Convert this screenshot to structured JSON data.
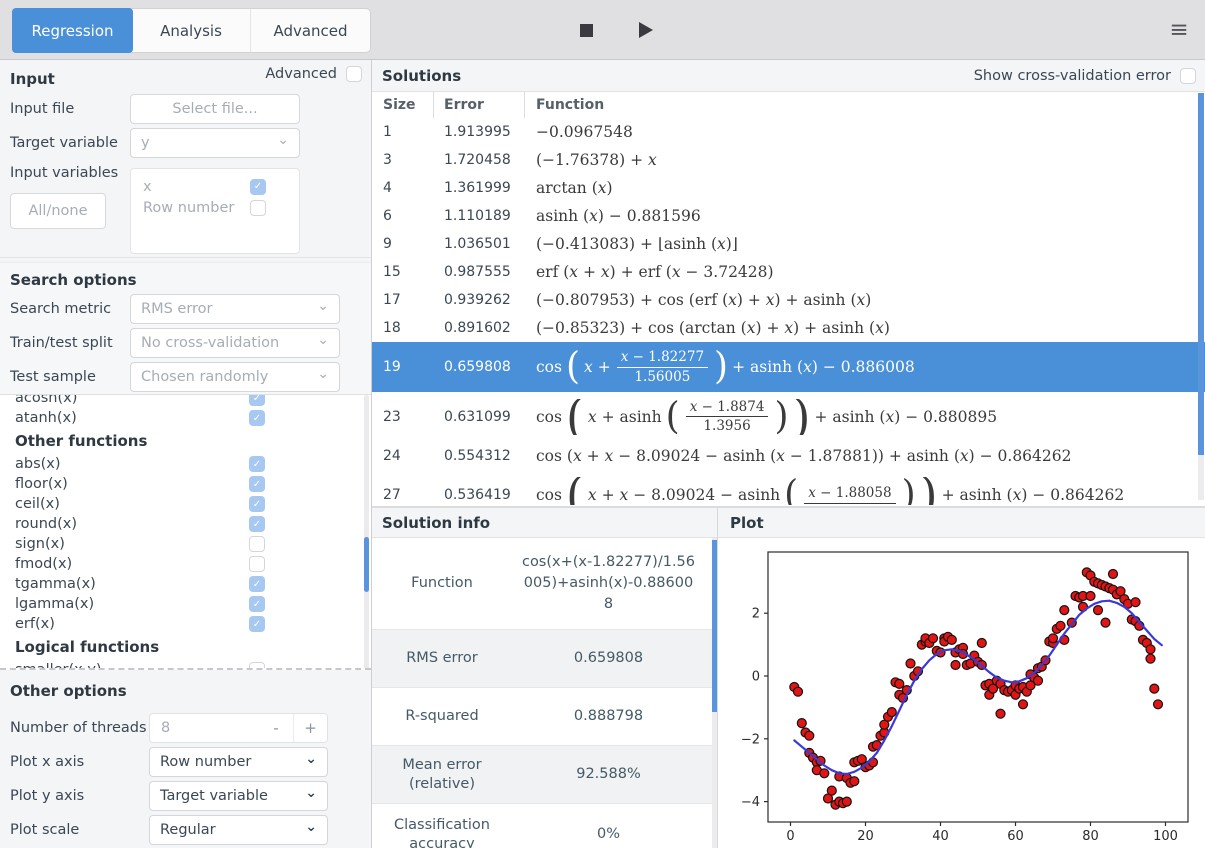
{
  "toolbar": {
    "tabs": [
      "Regression",
      "Analysis",
      "Advanced"
    ],
    "active_tab": "Regression"
  },
  "icons": {
    "menu": "≡",
    "chevron": "⌄",
    "check": "✓",
    "minus": "-",
    "plus": "+"
  },
  "sidebar": {
    "input": {
      "title": "Input",
      "advanced_label": "Advanced",
      "advanced_checked": false,
      "input_file_label": "Input file",
      "input_file_button": "Select file...",
      "target_variable_label": "Target variable",
      "target_variable_value": "y",
      "input_variables_label": "Input variables",
      "input_variables": [
        {
          "name": "x",
          "checked": true
        },
        {
          "name": "Row number",
          "checked": false
        }
      ],
      "all_none_button": "All/none"
    },
    "search_options": {
      "title": "Search options",
      "fields": [
        {
          "label": "Search metric",
          "value": "RMS error"
        },
        {
          "label": "Train/test split",
          "value": "No cross-validation"
        },
        {
          "label": "Test sample",
          "value": "Chosen randomly"
        }
      ]
    },
    "function_list": [
      {
        "type": "item",
        "label": "acosh(x)",
        "checked": true
      },
      {
        "type": "item",
        "label": "atanh(x)",
        "checked": true
      },
      {
        "type": "header",
        "label": "Other functions"
      },
      {
        "type": "item",
        "label": "abs(x)",
        "checked": true
      },
      {
        "type": "item",
        "label": "floor(x)",
        "checked": true
      },
      {
        "type": "item",
        "label": "ceil(x)",
        "checked": true
      },
      {
        "type": "item",
        "label": "round(x)",
        "checked": true
      },
      {
        "type": "item",
        "label": "sign(x)",
        "checked": false
      },
      {
        "type": "item",
        "label": "fmod(x)",
        "checked": false
      },
      {
        "type": "item",
        "label": "tgamma(x)",
        "checked": true
      },
      {
        "type": "item",
        "label": "lgamma(x)",
        "checked": true
      },
      {
        "type": "item",
        "label": "erf(x)",
        "checked": true
      },
      {
        "type": "header",
        "label": "Logical functions"
      },
      {
        "type": "item",
        "label": "smaller(x,y)",
        "checked": false
      }
    ],
    "other_options": {
      "title": "Other options",
      "threads_label": "Number of threads",
      "threads_value": "8",
      "fields": [
        {
          "label": "Plot x axis",
          "value": "Row number"
        },
        {
          "label": "Plot y axis",
          "value": "Target variable"
        },
        {
          "label": "Plot scale",
          "value": "Regular"
        }
      ]
    }
  },
  "solutions": {
    "title": "Solutions",
    "cv_label": "Show cross-validation error",
    "cv_checked": false,
    "columns": [
      "Size",
      "Error",
      "Function"
    ],
    "rows": [
      {
        "size": "1",
        "error": "1.913995",
        "fn": [
          {
            "t": "m",
            "s": "−0.0967548"
          }
        ]
      },
      {
        "size": "3",
        "error": "1.720458",
        "fn": [
          {
            "t": "m",
            "s": "(−1.76378) + x"
          }
        ]
      },
      {
        "size": "4",
        "error": "1.361999",
        "fn": [
          {
            "t": "m",
            "s": "arctan (x)"
          }
        ]
      },
      {
        "size": "6",
        "error": "1.110189",
        "fn": [
          {
            "t": "m",
            "s": "asinh (x) − 0.881596"
          }
        ]
      },
      {
        "size": "9",
        "error": "1.036501",
        "fn": [
          {
            "t": "m",
            "s": "(−0.413083) + ⌊asinh (x)⌋"
          }
        ]
      },
      {
        "size": "15",
        "error": "0.987555",
        "fn": [
          {
            "t": "m",
            "s": "erf (x + x) + erf (x − 3.72428)"
          }
        ]
      },
      {
        "size": "17",
        "error": "0.939262",
        "fn": [
          {
            "t": "m",
            "s": "(−0.807953) + cos (erf (x) + x) + asinh (x)"
          }
        ]
      },
      {
        "size": "18",
        "error": "0.891602",
        "fn": [
          {
            "t": "m",
            "s": "(−0.85323) + cos (arctan (x) + x) + asinh (x)"
          }
        ]
      },
      {
        "size": "19",
        "error": "0.659808",
        "selected": true,
        "fn": [
          {
            "t": "m",
            "s": "cos"
          },
          {
            "t": "bp",
            "s": "(",
            "size": 1
          },
          {
            "t": "m",
            "s": "x +"
          },
          {
            "t": "frac",
            "num": "x − 1.82277",
            "den": "1.56005"
          },
          {
            "t": "bp",
            "s": ")",
            "size": 1
          },
          {
            "t": "m",
            "s": "+ asinh (x) − 0.886008"
          }
        ]
      },
      {
        "size": "23",
        "error": "0.631099",
        "fn": [
          {
            "t": "m",
            "s": "cos"
          },
          {
            "t": "bp",
            "s": "(",
            "size": 2
          },
          {
            "t": "m",
            "s": "x + asinh"
          },
          {
            "t": "bp",
            "s": "(",
            "size": 1
          },
          {
            "t": "frac",
            "num": "x − 1.8874",
            "den": "1.3956"
          },
          {
            "t": "bp",
            "s": ")",
            "size": 1
          },
          {
            "t": "bp",
            "s": ")",
            "size": 2
          },
          {
            "t": "m",
            "s": "+ asinh (x) − 0.880895"
          }
        ]
      },
      {
        "size": "24",
        "error": "0.554312",
        "fn": [
          {
            "t": "m",
            "s": "cos (x + x − 8.09024 − asinh (x − 1.87881)) + asinh (x) − 0.864262"
          }
        ]
      },
      {
        "size": "27",
        "error": "0.536419",
        "fn": [
          {
            "t": "m",
            "s": "cos"
          },
          {
            "t": "bp",
            "s": "(",
            "size": 2
          },
          {
            "t": "m",
            "s": "x + x − 8.09024 − asinh"
          },
          {
            "t": "bp",
            "s": "(",
            "size": 1
          },
          {
            "t": "frac",
            "num": "x − 1.88058",
            "den": ""
          },
          {
            "t": "bp",
            "s": ")",
            "size": 1
          },
          {
            "t": "bp",
            "s": ")",
            "size": 2
          },
          {
            "t": "m",
            "s": "+ asinh (x) − 0.864262"
          }
        ]
      }
    ]
  },
  "solution_info": {
    "title": "Solution info",
    "rows": [
      {
        "label": "Function",
        "value": "cos(x+(x-1.82277)/1.56005)+asinh(x)-0.886008"
      },
      {
        "label": "RMS error",
        "value": "0.659808"
      },
      {
        "label": "R-squared",
        "value": "0.888798"
      },
      {
        "label": "Mean error (relative)",
        "value": "92.588%"
      },
      {
        "label": "Classification accuracy",
        "value": "0%"
      }
    ]
  },
  "plot_panel": {
    "title": "Plot"
  },
  "chart_data": {
    "type": "scatter",
    "title": "",
    "xlabel": "",
    "ylabel": "",
    "xlim": [
      -6,
      106
    ],
    "ylim": [
      -4.65,
      3.95
    ],
    "xticks": [
      0,
      20,
      40,
      60,
      80,
      100
    ],
    "yticks": [
      2,
      0,
      -2,
      -4
    ],
    "grid": false,
    "legend": "none",
    "series": [
      {
        "name": "data",
        "kind": "scatter",
        "color": "#e21414",
        "edge_color": "#141414",
        "points": [
          [
            1,
            -0.35
          ],
          [
            2,
            -0.5
          ],
          [
            3,
            -1.5
          ],
          [
            4,
            -1.8
          ],
          [
            5,
            -1.9
          ],
          [
            5,
            -2.45
          ],
          [
            6,
            -2.6
          ],
          [
            7,
            -2.75
          ],
          [
            7,
            -3.0
          ],
          [
            8,
            -2.7
          ],
          [
            9,
            -3.1
          ],
          [
            10,
            -3.9
          ],
          [
            11,
            -3.65
          ],
          [
            12,
            -4.1
          ],
          [
            13,
            -4.0
          ],
          [
            13,
            -3.2
          ],
          [
            14,
            -4.05
          ],
          [
            15,
            -4.0
          ],
          [
            15,
            -3.25
          ],
          [
            16,
            -3.4
          ],
          [
            17,
            -3.35
          ],
          [
            17,
            -2.75
          ],
          [
            18,
            -2.7
          ],
          [
            19,
            -2.65
          ],
          [
            20,
            -2.9
          ],
          [
            21,
            -2.85
          ],
          [
            22,
            -2.75
          ],
          [
            22,
            -2.25
          ],
          [
            23,
            -2.2
          ],
          [
            24,
            -1.9
          ],
          [
            25,
            -1.8
          ],
          [
            25,
            -1.55
          ],
          [
            26,
            -1.3
          ],
          [
            27,
            -1.15
          ],
          [
            28,
            -0.2
          ],
          [
            29,
            -0.25
          ],
          [
            29,
            -0.6
          ],
          [
            30,
            -0.7
          ],
          [
            31,
            -0.45
          ],
          [
            32,
            0.4
          ],
          [
            33,
            0.0
          ],
          [
            34,
            0.15
          ],
          [
            35,
            1.0
          ],
          [
            36,
            1.1
          ],
          [
            36,
            1.2
          ],
          [
            37,
            1.05
          ],
          [
            38,
            1.2
          ],
          [
            39,
            0.8
          ],
          [
            40,
            0.75
          ],
          [
            41,
            1.2
          ],
          [
            41,
            1.1
          ],
          [
            42,
            1.25
          ],
          [
            43,
            1.15
          ],
          [
            44,
            0.35
          ],
          [
            44,
            0.75
          ],
          [
            45,
            0.85
          ],
          [
            46,
            0.9
          ],
          [
            46,
            0.7
          ],
          [
            47,
            0.35
          ],
          [
            48,
            0.4
          ],
          [
            49,
            0.65
          ],
          [
            50,
            0.45
          ],
          [
            51,
            1.05
          ],
          [
            51,
            0.35
          ],
          [
            52,
            -0.3
          ],
          [
            53,
            -0.25
          ],
          [
            53,
            -0.6
          ],
          [
            54,
            -0.4
          ],
          [
            55,
            -0.15
          ],
          [
            56,
            -0.25
          ],
          [
            56,
            -1.2
          ],
          [
            57,
            -0.45
          ],
          [
            58,
            -0.5
          ],
          [
            59,
            -0.45
          ],
          [
            60,
            -0.6
          ],
          [
            60,
            -0.3
          ],
          [
            61,
            -0.4
          ],
          [
            62,
            -0.9
          ],
          [
            62,
            -0.35
          ],
          [
            63,
            -0.5
          ],
          [
            64,
            -0.3
          ],
          [
            64,
            0.05
          ],
          [
            65,
            -0.05
          ],
          [
            66,
            0.25
          ],
          [
            66,
            -0.15
          ],
          [
            67,
            0.3
          ],
          [
            68,
            0.5
          ],
          [
            69,
            1.1
          ],
          [
            70,
            1.05
          ],
          [
            70,
            1.2
          ],
          [
            71,
            1.5
          ],
          [
            72,
            1.6
          ],
          [
            73,
            1.15
          ],
          [
            73,
            2.1
          ],
          [
            75,
            1.7
          ],
          [
            76,
            2.55
          ],
          [
            77,
            2.5
          ],
          [
            78,
            2.55
          ],
          [
            78,
            2.2
          ],
          [
            79,
            3.3
          ],
          [
            80,
            2.55
          ],
          [
            80,
            3.2
          ],
          [
            81,
            3.0
          ],
          [
            82,
            2.95
          ],
          [
            82,
            2.1
          ],
          [
            83,
            2.9
          ],
          [
            84,
            2.85
          ],
          [
            84,
            1.7
          ],
          [
            85,
            2.8
          ],
          [
            86,
            3.25
          ],
          [
            86,
            2.75
          ],
          [
            87,
            2.6
          ],
          [
            88,
            2.7
          ],
          [
            89,
            2.45
          ],
          [
            90,
            2.3
          ],
          [
            91,
            1.8
          ],
          [
            92,
            2.35
          ],
          [
            92,
            1.75
          ],
          [
            93,
            1.6
          ],
          [
            94,
            1.15
          ],
          [
            95,
            1.05
          ],
          [
            96,
            0.85
          ],
          [
            96,
            0.55
          ],
          [
            97,
            -0.4
          ],
          [
            98,
            -0.9
          ]
        ]
      },
      {
        "name": "fit",
        "kind": "line",
        "color": "#3a3ad6",
        "points": [
          [
            1,
            -2.05
          ],
          [
            3,
            -2.25
          ],
          [
            5,
            -2.45
          ],
          [
            7,
            -2.65
          ],
          [
            9,
            -2.85
          ],
          [
            11,
            -3.0
          ],
          [
            13,
            -3.1
          ],
          [
            15,
            -3.12
          ],
          [
            17,
            -3.05
          ],
          [
            19,
            -2.92
          ],
          [
            21,
            -2.72
          ],
          [
            23,
            -2.45
          ],
          [
            25,
            -2.05
          ],
          [
            27,
            -1.6
          ],
          [
            29,
            -1.1
          ],
          [
            31,
            -0.6
          ],
          [
            33,
            -0.15
          ],
          [
            35,
            0.22
          ],
          [
            37,
            0.5
          ],
          [
            39,
            0.7
          ],
          [
            41,
            0.82
          ],
          [
            43,
            0.85
          ],
          [
            45,
            0.8
          ],
          [
            47,
            0.68
          ],
          [
            49,
            0.52
          ],
          [
            51,
            0.32
          ],
          [
            53,
            0.12
          ],
          [
            55,
            -0.05
          ],
          [
            57,
            -0.15
          ],
          [
            59,
            -0.2
          ],
          [
            61,
            -0.17
          ],
          [
            63,
            -0.07
          ],
          [
            65,
            0.1
          ],
          [
            67,
            0.35
          ],
          [
            69,
            0.65
          ],
          [
            71,
            1.0
          ],
          [
            73,
            1.35
          ],
          [
            75,
            1.65
          ],
          [
            77,
            1.95
          ],
          [
            79,
            2.15
          ],
          [
            81,
            2.3
          ],
          [
            83,
            2.38
          ],
          [
            85,
            2.4
          ],
          [
            87,
            2.33
          ],
          [
            89,
            2.2
          ],
          [
            91,
            2.0
          ],
          [
            93,
            1.72
          ],
          [
            95,
            1.45
          ],
          [
            97,
            1.18
          ],
          [
            99,
            0.98
          ]
        ]
      }
    ]
  },
  "colors": {
    "accent": "#4a90d9",
    "selected_row": "#4a90d9",
    "checkbox_checked": "#a6c8f1",
    "scatter_fill": "#e21414",
    "line": "#3a3ad6",
    "scrollbar_thumb": "#5a94dc"
  }
}
